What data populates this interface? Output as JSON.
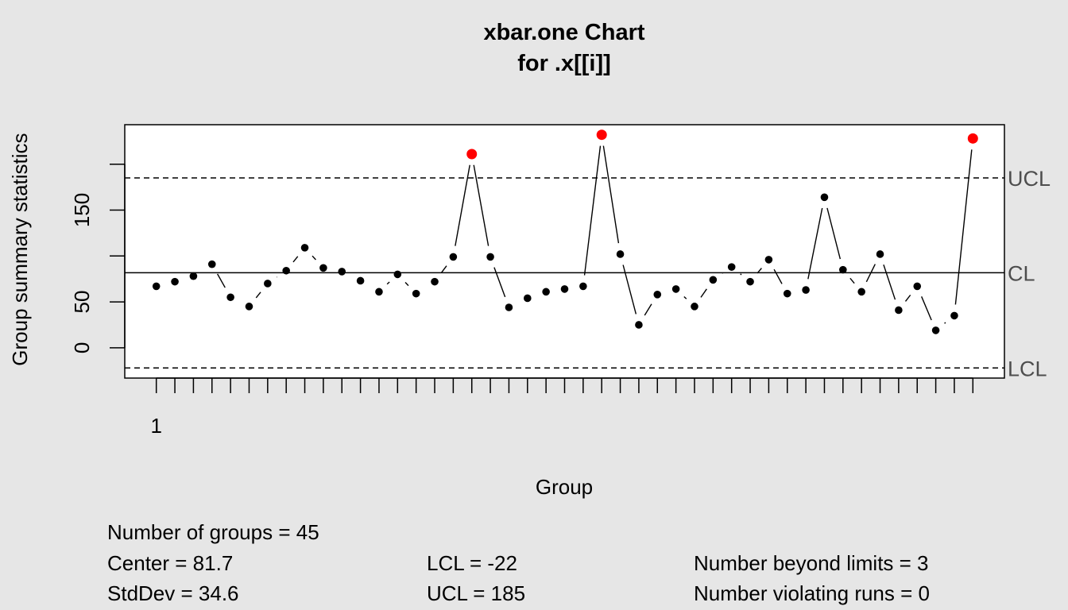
{
  "chart_data": {
    "type": "line",
    "title": "xbar.one Chart",
    "subtitle": "for .x[[i]]",
    "xlabel": "Group",
    "ylabel": "Group summary statistics",
    "x_tick_label": "1",
    "y_ticks": [
      0,
      50,
      100,
      150,
      200
    ],
    "y_tick_labels": [
      "0",
      "50",
      "",
      "150",
      ""
    ],
    "ylim": [
      -33,
      243
    ],
    "xlim": [
      -0.7,
      46.7
    ],
    "limits": {
      "center": 81.7,
      "ucl": 185,
      "lcl": -22,
      "center_label": "CL",
      "ucl_label": "UCL",
      "lcl_label": "LCL"
    },
    "x": [
      1,
      2,
      3,
      4,
      5,
      6,
      7,
      8,
      9,
      10,
      11,
      12,
      13,
      14,
      15,
      16,
      17,
      18,
      19,
      20,
      21,
      22,
      23,
      24,
      25,
      26,
      27,
      28,
      29,
      30,
      31,
      32,
      33,
      34,
      35,
      36,
      37,
      38,
      39,
      40,
      41,
      42,
      43,
      44,
      45
    ],
    "values": [
      67,
      72,
      78,
      91,
      55,
      45,
      70,
      84,
      109,
      87,
      83,
      73,
      61,
      80,
      59,
      72,
      99,
      211,
      99,
      44,
      54,
      61,
      64,
      67,
      232,
      102,
      25,
      58,
      64,
      45,
      74,
      88,
      72,
      96,
      59,
      63,
      164,
      85,
      61,
      102,
      41,
      67,
      19,
      35,
      228
    ],
    "beyond_limits_color": "#ff0000",
    "point_color": "#000000"
  },
  "stats": {
    "groups": "Number of groups = 45",
    "center": "Center = 81.7",
    "stddev": "StdDev = 34.6",
    "lcl": "LCL = -22",
    "ucl": "UCL = 185",
    "beyond": "Number beyond limits = 3",
    "runs": "Number violating runs = 0"
  }
}
